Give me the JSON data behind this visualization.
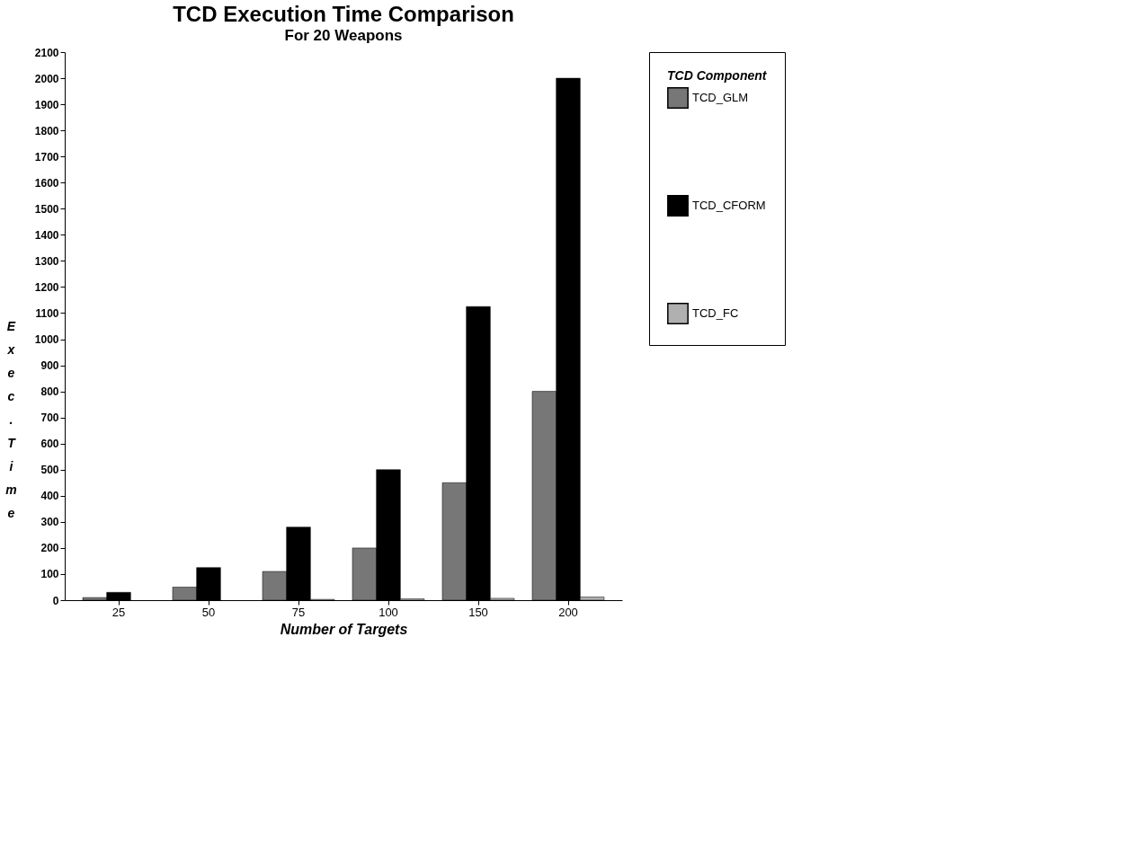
{
  "chart_data": {
    "type": "bar",
    "title": "TCD Execution Time Comparison",
    "subtitle": "For 20 Weapons",
    "xlabel": "Number of Targets",
    "ylabel": "Exec. Time",
    "legend_title": "TCD Component",
    "categories": [
      "25",
      "50",
      "75",
      "100",
      "150",
      "200"
    ],
    "series": [
      {
        "name": "TCD_GLM",
        "color": "#777777",
        "values": [
          10,
          50,
          110,
          200,
          450,
          800
        ]
      },
      {
        "name": "TCD_CFORM",
        "color": "#000000",
        "values": [
          30,
          125,
          280,
          500,
          1125,
          2000
        ]
      },
      {
        "name": "TCD_FC",
        "color": "#b0b0b0",
        "values": [
          null,
          null,
          3,
          5,
          7,
          12
        ]
      }
    ],
    "ylim": [
      0,
      2100
    ],
    "yticks": [
      0,
      100,
      200,
      300,
      400,
      500,
      600,
      700,
      800,
      900,
      1000,
      1100,
      1200,
      1300,
      1400,
      1500,
      1600,
      1700,
      1800,
      1900,
      2000,
      2100
    ],
    "grid": false,
    "legend": "right"
  }
}
